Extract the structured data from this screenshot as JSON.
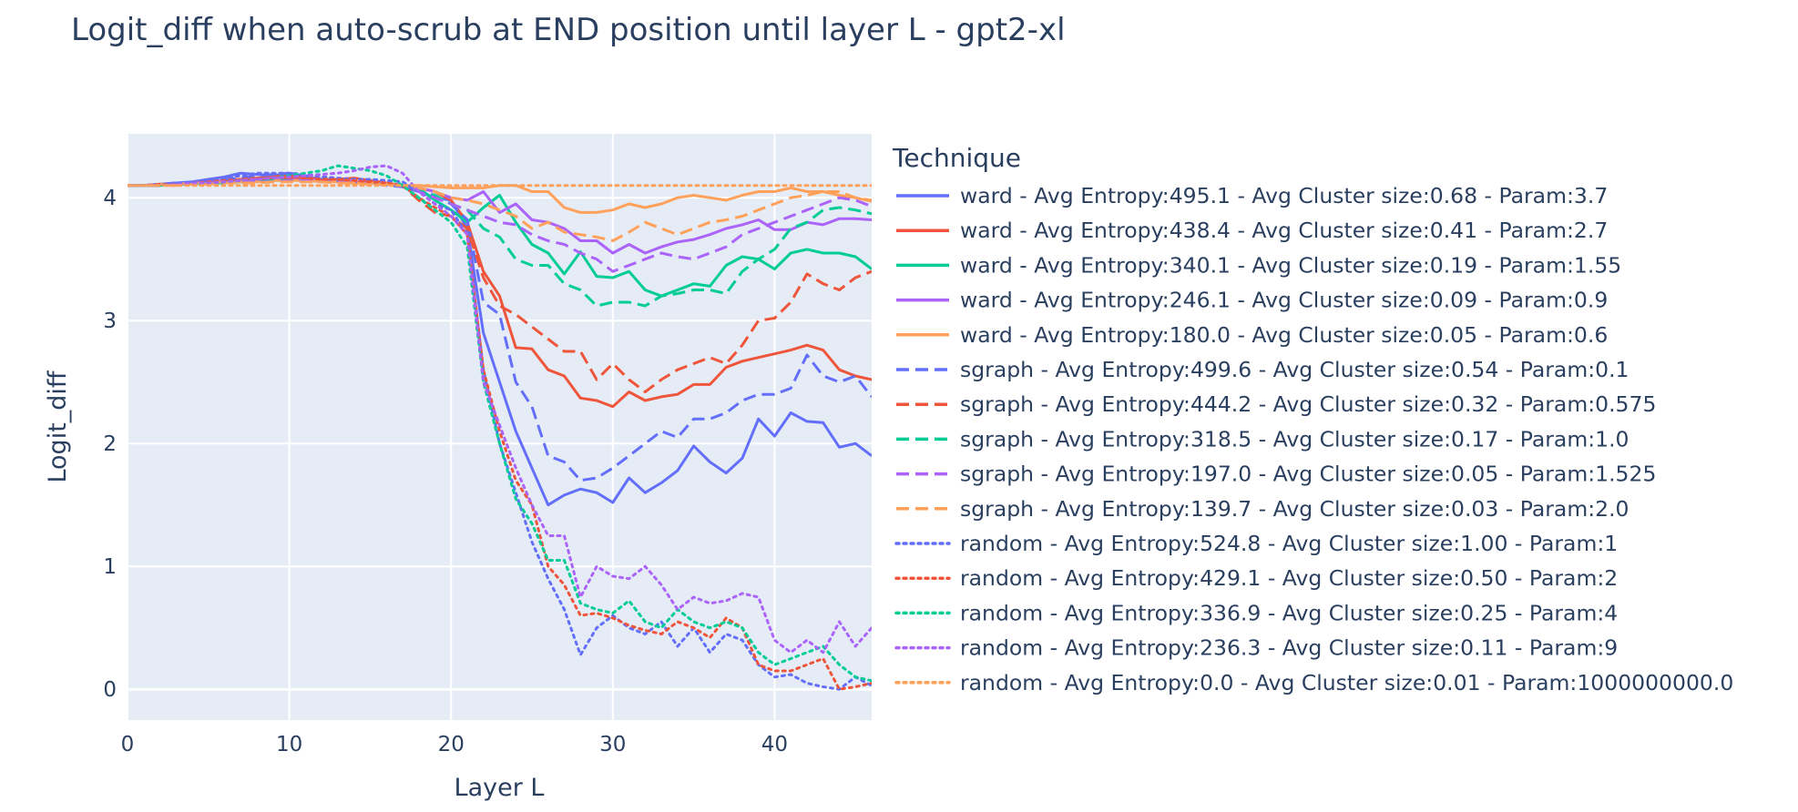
{
  "chart_data": {
    "type": "line",
    "title": "Logit_diff when auto-scrub at END position until layer L - gpt2-xl",
    "xlabel": "Layer L",
    "ylabel": "Logit_diff",
    "xlim": [
      0,
      46
    ],
    "ylim": [
      -0.25,
      4.52
    ],
    "xticks": [
      0,
      10,
      20,
      30,
      40
    ],
    "yticks": [
      0,
      1,
      2,
      3,
      4
    ],
    "grid": true,
    "plot_background": "#e5ecf6",
    "legend_title": "Technique",
    "legend_position": "right",
    "x": [
      0,
      1,
      2,
      3,
      4,
      5,
      6,
      7,
      8,
      9,
      10,
      11,
      12,
      13,
      14,
      15,
      16,
      17,
      18,
      19,
      20,
      21,
      22,
      23,
      24,
      25,
      26,
      27,
      28,
      29,
      30,
      31,
      32,
      33,
      34,
      35,
      36,
      37,
      38,
      39,
      40,
      41,
      42,
      43,
      44,
      45,
      46
    ],
    "series": [
      {
        "name": "ward - Avg Entropy:495.1 - Avg Cluster size:0.68 - Param:3.7",
        "color": "#636efa",
        "dash": "solid",
        "values": [
          4.1,
          4.1,
          4.11,
          4.12,
          4.13,
          4.15,
          4.17,
          4.2,
          4.19,
          4.18,
          4.2,
          4.17,
          4.15,
          4.14,
          4.13,
          4.12,
          4.11,
          4.09,
          4.05,
          4.0,
          3.98,
          3.75,
          2.9,
          2.5,
          2.1,
          1.8,
          1.5,
          1.58,
          1.63,
          1.6,
          1.52,
          1.72,
          1.6,
          1.68,
          1.78,
          1.98,
          1.85,
          1.76,
          1.88,
          2.2,
          2.06,
          2.25,
          2.18,
          2.17,
          1.97,
          2.0,
          1.9
        ]
      },
      {
        "name": "ward - Avg Entropy:438.4 - Avg Cluster size:0.41 - Param:2.7",
        "color": "#ef553b",
        "dash": "solid",
        "values": [
          4.1,
          4.1,
          4.11,
          4.11,
          4.12,
          4.13,
          4.14,
          4.15,
          4.16,
          4.17,
          4.18,
          4.16,
          4.15,
          4.15,
          4.16,
          4.14,
          4.12,
          4.1,
          4.08,
          4.05,
          3.98,
          3.8,
          3.4,
          3.2,
          2.78,
          2.77,
          2.6,
          2.55,
          2.37,
          2.35,
          2.3,
          2.42,
          2.35,
          2.38,
          2.4,
          2.48,
          2.48,
          2.62,
          2.67,
          2.7,
          2.73,
          2.76,
          2.8,
          2.76,
          2.6,
          2.55,
          2.52
        ]
      },
      {
        "name": "ward - Avg Entropy:340.1 - Avg Cluster size:0.19 - Param:1.55",
        "color": "#00cc96",
        "dash": "solid",
        "values": [
          4.1,
          4.1,
          4.1,
          4.11,
          4.11,
          4.12,
          4.12,
          4.13,
          4.14,
          4.14,
          4.15,
          4.14,
          4.14,
          4.13,
          4.12,
          4.12,
          4.11,
          4.1,
          4.08,
          3.98,
          3.9,
          3.8,
          3.92,
          4.02,
          3.8,
          3.62,
          3.55,
          3.38,
          3.56,
          3.36,
          3.35,
          3.4,
          3.25,
          3.2,
          3.25,
          3.3,
          3.28,
          3.45,
          3.52,
          3.5,
          3.42,
          3.55,
          3.58,
          3.55,
          3.55,
          3.52,
          3.42
        ]
      },
      {
        "name": "ward - Avg Entropy:246.1 - Avg Cluster size:0.09 - Param:0.9",
        "color": "#ab63fa",
        "dash": "solid",
        "values": [
          4.1,
          4.1,
          4.11,
          4.11,
          4.12,
          4.13,
          4.14,
          4.14,
          4.15,
          4.16,
          4.16,
          4.15,
          4.14,
          4.13,
          4.13,
          4.12,
          4.11,
          4.1,
          4.08,
          4.05,
          4.0,
          3.98,
          4.05,
          3.88,
          3.95,
          3.82,
          3.8,
          3.75,
          3.65,
          3.65,
          3.55,
          3.62,
          3.55,
          3.6,
          3.64,
          3.66,
          3.7,
          3.75,
          3.78,
          3.82,
          3.74,
          3.74,
          3.8,
          3.78,
          3.83,
          3.83,
          3.82
        ]
      },
      {
        "name": "ward - Avg Entropy:180.0 - Avg Cluster size:0.05 - Param:0.6",
        "color": "#ffa15a",
        "dash": "solid",
        "values": [
          4.1,
          4.1,
          4.11,
          4.11,
          4.12,
          4.12,
          4.13,
          4.13,
          4.13,
          4.14,
          4.14,
          4.14,
          4.13,
          4.13,
          4.12,
          4.12,
          4.11,
          4.1,
          4.1,
          4.09,
          4.08,
          4.08,
          4.08,
          4.1,
          4.1,
          4.05,
          4.05,
          3.92,
          3.88,
          3.88,
          3.9,
          3.95,
          3.92,
          3.95,
          4.0,
          4.02,
          4.0,
          3.98,
          4.02,
          4.05,
          4.05,
          4.08,
          4.05,
          4.05,
          4.02,
          4.0,
          3.97
        ]
      },
      {
        "name": "sgraph - Avg Entropy:499.6 - Avg Cluster size:0.54 - Param:0.1",
        "color": "#636efa",
        "dash": "dash",
        "values": [
          4.1,
          4.1,
          4.11,
          4.12,
          4.12,
          4.13,
          4.15,
          4.16,
          4.18,
          4.19,
          4.2,
          4.18,
          4.15,
          4.14,
          4.13,
          4.12,
          4.1,
          4.09,
          4.05,
          4.02,
          3.95,
          3.82,
          3.15,
          3.05,
          2.5,
          2.3,
          1.9,
          1.85,
          1.7,
          1.72,
          1.8,
          1.9,
          2.0,
          2.1,
          2.05,
          2.2,
          2.2,
          2.25,
          2.35,
          2.4,
          2.4,
          2.45,
          2.72,
          2.55,
          2.5,
          2.55,
          2.38
        ]
      },
      {
        "name": "sgraph - Avg Entropy:444.2 - Avg Cluster size:0.32 - Param:0.575",
        "color": "#ef553b",
        "dash": "dash",
        "values": [
          4.1,
          4.1,
          4.1,
          4.11,
          4.11,
          4.12,
          4.13,
          4.14,
          4.14,
          4.15,
          4.16,
          4.15,
          4.14,
          4.14,
          4.13,
          4.12,
          4.11,
          4.1,
          3.98,
          3.88,
          3.85,
          3.75,
          3.35,
          3.12,
          3.05,
          2.95,
          2.85,
          2.75,
          2.75,
          2.52,
          2.65,
          2.52,
          2.42,
          2.52,
          2.6,
          2.65,
          2.7,
          2.65,
          2.8,
          3.0,
          3.02,
          3.15,
          3.38,
          3.3,
          3.25,
          3.35,
          3.4
        ]
      },
      {
        "name": "sgraph - Avg Entropy:318.5 - Avg Cluster size:0.17 - Param:1.0",
        "color": "#00cc96",
        "dash": "dash",
        "values": [
          4.1,
          4.1,
          4.1,
          4.11,
          4.11,
          4.12,
          4.12,
          4.13,
          4.13,
          4.14,
          4.14,
          4.14,
          4.13,
          4.13,
          4.12,
          4.12,
          4.11,
          4.1,
          4.05,
          4.02,
          3.95,
          3.9,
          3.75,
          3.68,
          3.5,
          3.45,
          3.45,
          3.3,
          3.25,
          3.12,
          3.15,
          3.15,
          3.12,
          3.2,
          3.22,
          3.25,
          3.25,
          3.22,
          3.4,
          3.5,
          3.58,
          3.75,
          3.8,
          3.9,
          3.92,
          3.9,
          3.87
        ]
      },
      {
        "name": "sgraph - Avg Entropy:197.0 - Avg Cluster size:0.05 - Param:1.525",
        "color": "#ab63fa",
        "dash": "dash",
        "values": [
          4.1,
          4.1,
          4.1,
          4.11,
          4.11,
          4.12,
          4.12,
          4.13,
          4.13,
          4.13,
          4.14,
          4.14,
          4.13,
          4.13,
          4.12,
          4.12,
          4.11,
          4.1,
          4.05,
          4.0,
          3.95,
          3.9,
          3.85,
          3.8,
          3.78,
          3.7,
          3.65,
          3.62,
          3.55,
          3.5,
          3.4,
          3.45,
          3.5,
          3.55,
          3.52,
          3.5,
          3.55,
          3.6,
          3.7,
          3.75,
          3.8,
          3.85,
          3.9,
          3.95,
          4.0,
          3.98,
          3.93
        ]
      },
      {
        "name": "sgraph - Avg Entropy:139.7 - Avg Cluster size:0.03 - Param:2.0",
        "color": "#ffa15a",
        "dash": "dash",
        "values": [
          4.1,
          4.1,
          4.1,
          4.1,
          4.11,
          4.11,
          4.12,
          4.12,
          4.12,
          4.13,
          4.13,
          4.13,
          4.13,
          4.12,
          4.12,
          4.11,
          4.11,
          4.1,
          4.08,
          4.05,
          4.0,
          3.98,
          3.95,
          3.9,
          3.85,
          3.75,
          3.8,
          3.72,
          3.7,
          3.68,
          3.65,
          3.72,
          3.8,
          3.75,
          3.7,
          3.75,
          3.8,
          3.82,
          3.85,
          3.9,
          3.95,
          4.0,
          4.02,
          4.05,
          4.05,
          4.0,
          3.98
        ]
      },
      {
        "name": "random - Avg Entropy:524.8 - Avg Cluster size:1.00 - Param:1",
        "color": "#636efa",
        "dash": "dot",
        "values": [
          4.1,
          4.1,
          4.11,
          4.12,
          4.12,
          4.14,
          4.16,
          4.18,
          4.2,
          4.2,
          4.2,
          4.19,
          4.17,
          4.16,
          4.15,
          4.15,
          4.14,
          4.13,
          4.05,
          3.95,
          3.9,
          3.7,
          2.6,
          2.0,
          1.6,
          1.2,
          0.9,
          0.65,
          0.28,
          0.5,
          0.6,
          0.5,
          0.45,
          0.55,
          0.35,
          0.5,
          0.3,
          0.45,
          0.4,
          0.2,
          0.1,
          0.12,
          0.05,
          0.02,
          0.0,
          0.1,
          0.03
        ]
      },
      {
        "name": "random - Avg Entropy:429.1 - Avg Cluster size:0.50 - Param:2",
        "color": "#ef553b",
        "dash": "dot",
        "values": [
          4.1,
          4.1,
          4.11,
          4.11,
          4.12,
          4.13,
          4.14,
          4.15,
          4.16,
          4.16,
          4.17,
          4.16,
          4.15,
          4.15,
          4.14,
          4.13,
          4.12,
          4.1,
          4.0,
          3.92,
          3.85,
          3.7,
          2.6,
          2.1,
          1.7,
          1.5,
          1.0,
          0.85,
          0.6,
          0.62,
          0.58,
          0.52,
          0.48,
          0.45,
          0.55,
          0.5,
          0.42,
          0.58,
          0.5,
          0.2,
          0.15,
          0.15,
          0.2,
          0.25,
          0.0,
          0.02,
          0.05
        ]
      },
      {
        "name": "random - Avg Entropy:336.9 - Avg Cluster size:0.25 - Param:4",
        "color": "#00cc96",
        "dash": "dot",
        "values": [
          4.1,
          4.1,
          4.1,
          4.11,
          4.12,
          4.12,
          4.13,
          4.14,
          4.15,
          4.16,
          4.18,
          4.2,
          4.22,
          4.26,
          4.24,
          4.22,
          4.18,
          4.1,
          4.0,
          3.9,
          3.8,
          3.6,
          2.5,
          2.0,
          1.55,
          1.35,
          1.05,
          1.05,
          0.7,
          0.65,
          0.62,
          0.72,
          0.55,
          0.5,
          0.65,
          0.55,
          0.5,
          0.55,
          0.5,
          0.3,
          0.2,
          0.25,
          0.3,
          0.35,
          0.2,
          0.1,
          0.07
        ]
      },
      {
        "name": "random - Avg Entropy:236.3 - Avg Cluster size:0.11 - Param:9",
        "color": "#ab63fa",
        "dash": "dot",
        "values": [
          4.1,
          4.1,
          4.1,
          4.11,
          4.12,
          4.12,
          4.13,
          4.14,
          4.15,
          4.16,
          4.17,
          4.18,
          4.19,
          4.2,
          4.22,
          4.25,
          4.26,
          4.2,
          4.05,
          3.95,
          3.85,
          3.7,
          2.5,
          2.15,
          1.8,
          1.5,
          1.25,
          1.25,
          0.75,
          1.0,
          0.92,
          0.9,
          1.0,
          0.85,
          0.65,
          0.75,
          0.7,
          0.72,
          0.78,
          0.75,
          0.4,
          0.3,
          0.4,
          0.3,
          0.55,
          0.35,
          0.5
        ]
      },
      {
        "name": "random - Avg Entropy:0.0 - Avg Cluster size:0.01 - Param:1000000000.0",
        "color": "#ffa15a",
        "dash": "dot",
        "values": [
          4.1,
          4.1,
          4.1,
          4.1,
          4.1,
          4.1,
          4.1,
          4.1,
          4.1,
          4.1,
          4.1,
          4.1,
          4.1,
          4.1,
          4.1,
          4.1,
          4.1,
          4.1,
          4.1,
          4.1,
          4.1,
          4.1,
          4.1,
          4.1,
          4.1,
          4.1,
          4.1,
          4.1,
          4.1,
          4.1,
          4.1,
          4.1,
          4.1,
          4.1,
          4.1,
          4.1,
          4.1,
          4.1,
          4.1,
          4.1,
          4.1,
          4.1,
          4.1,
          4.1,
          4.1,
          4.1,
          4.1
        ]
      }
    ]
  }
}
